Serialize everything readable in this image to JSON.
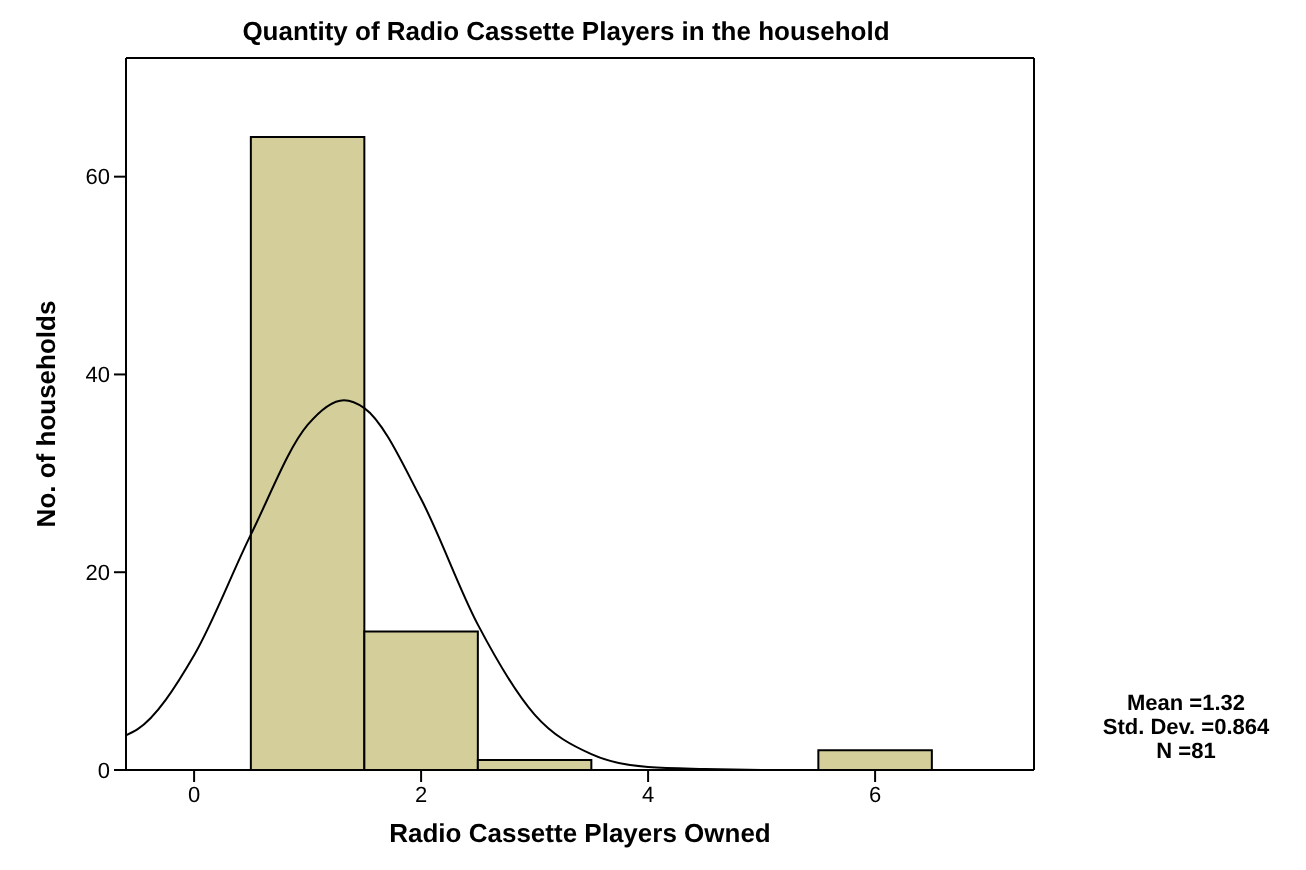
{
  "chart_data": {
    "type": "histogram",
    "title": "Quantity of Radio Cassette Players in the household",
    "xlabel": "Radio Cassette Players Owned",
    "ylabel": "No. of households",
    "bins": [
      0.5,
      1.5,
      2.5,
      3.5,
      4.5,
      5.5,
      6.5
    ],
    "values": [
      64,
      14,
      1,
      0,
      0,
      2
    ],
    "color": "#d3ce9a",
    "series": [
      {
        "type": "line",
        "color": "#000000",
        "x": [
          -0.6,
          -0.5,
          0,
          0.5,
          1,
          1.32,
          1.5,
          2,
          2.5,
          3,
          3.5,
          4,
          4.5,
          5
        ],
        "values": [
          3.5,
          4.1,
          11.6,
          23.8,
          34.9,
          37.4,
          36.6,
          27.4,
          14.7,
          5.6,
          1.6,
          0.3,
          0.1,
          0
        ]
      }
    ],
    "xlim": [
      -0.6,
      7.4
    ],
    "xticks": [
      0,
      2,
      4,
      6
    ],
    "ylim": [
      0,
      72
    ],
    "yticks": [
      0,
      20,
      40,
      60
    ],
    "annotations": [
      "Mean =1.32",
      "Std. Dev. =0.864",
      "N =81"
    ],
    "grid": false
  }
}
